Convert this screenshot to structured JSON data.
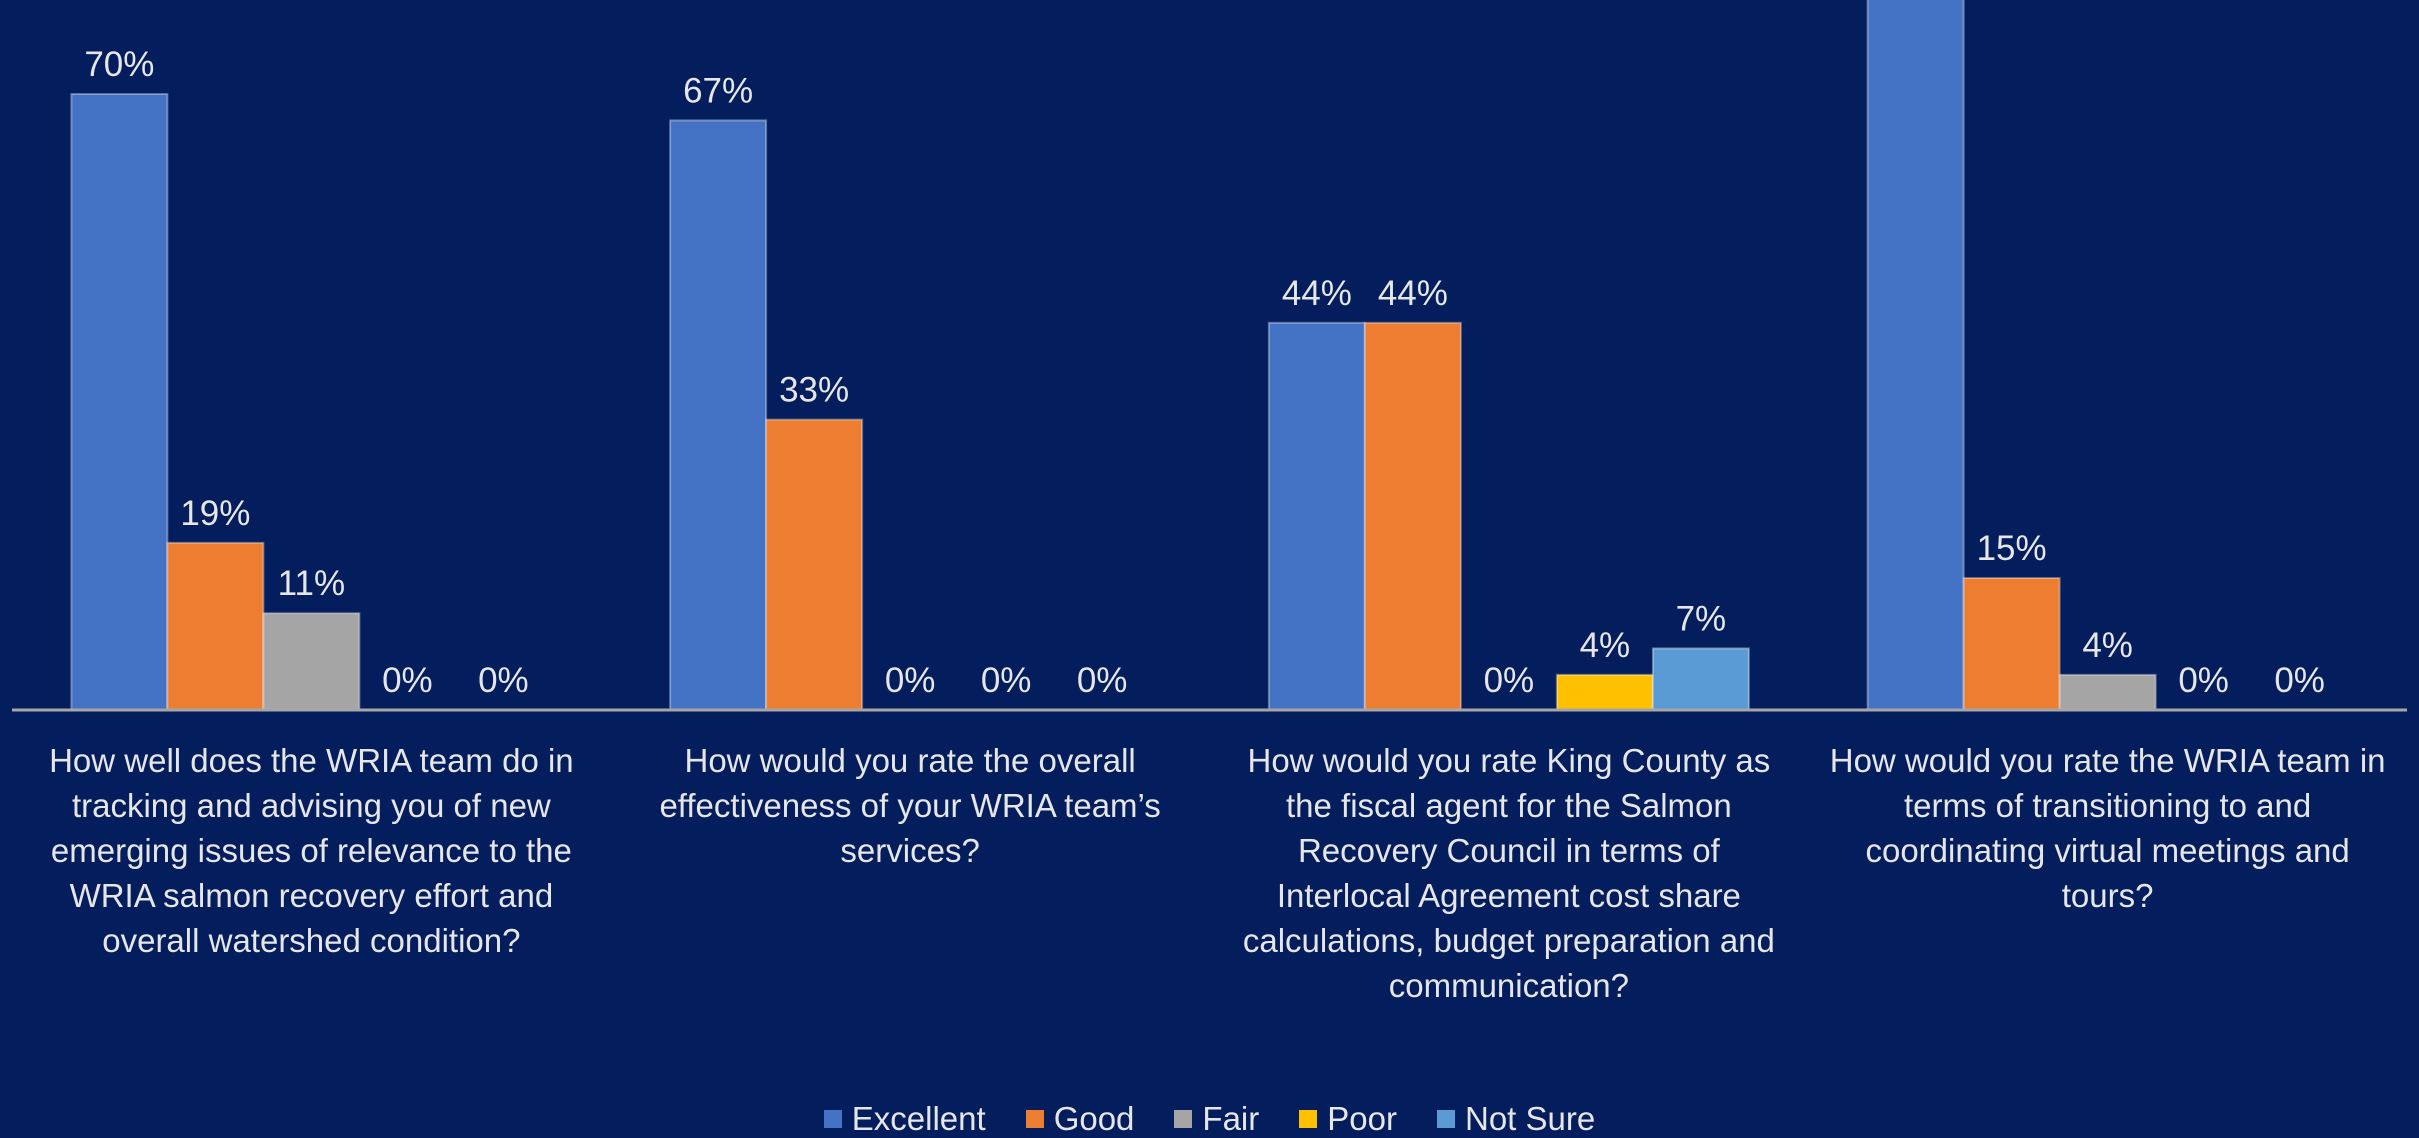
{
  "chart_data": {
    "type": "bar",
    "categories": [
      "How well does the WRIA team do in tracking and advising you of new emerging issues of relevance to the WRIA salmon recovery effort and overall watershed condition?",
      "How would you rate the overall effectiveness of your WRIA team’s services?",
      "How would you rate King County as the fiscal agent for the Salmon Recovery Council in terms of Interlocal Agreement cost share calculations, budget preparation and communication?",
      "How would you rate the WRIA team in terms of transitioning to and coordinating virtual meetings and tours?"
    ],
    "series": [
      {
        "name": "Excellent",
        "color": "#4472c4",
        "values": [
          70,
          67,
          44,
          81
        ],
        "value_labels": [
          "70%",
          "67%",
          "44%",
          null
        ]
      },
      {
        "name": "Good",
        "color": "#ed7d31",
        "values": [
          19,
          33,
          44,
          15
        ],
        "value_labels": [
          "19%",
          "33%",
          "44%",
          "15%"
        ]
      },
      {
        "name": "Fair",
        "color": "#a5a5a5",
        "values": [
          11,
          0,
          0,
          4
        ],
        "value_labels": [
          "11%",
          "0%",
          "0%",
          "4%"
        ]
      },
      {
        "name": "Poor",
        "color": "#ffc000",
        "values": [
          0,
          0,
          4,
          0
        ],
        "value_labels": [
          "0%",
          "0%",
          "4%",
          "0%"
        ]
      },
      {
        "name": "Not Sure",
        "color": "#5b9bd5",
        "values": [
          0,
          0,
          7,
          0
        ],
        "value_labels": [
          "0%",
          "0%",
          "7%",
          "0%"
        ]
      }
    ],
    "ylim": [
      0,
      80
    ]
  }
}
